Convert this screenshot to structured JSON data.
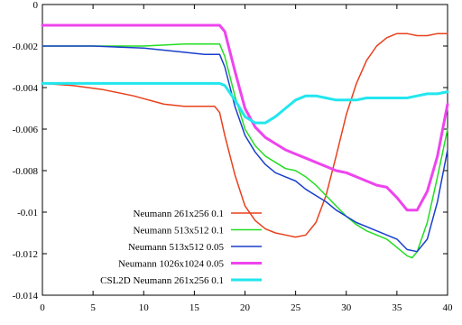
{
  "chart_data": {
    "type": "line",
    "title": "",
    "xlabel": "",
    "ylabel": "",
    "xlim": [
      0,
      40
    ],
    "ylim": [
      -0.014,
      0
    ],
    "xticks": [
      0,
      5,
      10,
      15,
      20,
      25,
      30,
      35,
      40
    ],
    "yticks": [
      0,
      -0.002,
      -0.004,
      -0.006,
      -0.008,
      -0.01,
      -0.012,
      -0.014
    ],
    "xtick_labels": [
      "0",
      "5",
      "10",
      "15",
      "20",
      "25",
      "30",
      "35",
      "40"
    ],
    "ytick_labels": [
      "0",
      "-0.002",
      "-0.004",
      "-0.006",
      "-0.008",
      "-0.01",
      "-0.012",
      "-0.014"
    ],
    "grid": false,
    "legend_position": "lower-left",
    "series": [
      {
        "name": "Neumann 261x256 0.1",
        "color": "#e8401c",
        "width": 1.5,
        "x": [
          0,
          3,
          6,
          9,
          12,
          14,
          16,
          17,
          17.5,
          18,
          19,
          20,
          21,
          22,
          23,
          24,
          25,
          26,
          27,
          28,
          29,
          30,
          31,
          32,
          33,
          34,
          35,
          36,
          37,
          38,
          39,
          40
        ],
        "y": [
          -0.0038,
          -0.0039,
          -0.0041,
          -0.0044,
          -0.0048,
          -0.0049,
          -0.0049,
          -0.0049,
          -0.0052,
          -0.0063,
          -0.0082,
          -0.0097,
          -0.0104,
          -0.0108,
          -0.011,
          -0.0111,
          -0.0112,
          -0.0111,
          -0.0105,
          -0.0092,
          -0.0073,
          -0.0053,
          -0.0038,
          -0.0027,
          -0.002,
          -0.0016,
          -0.0014,
          -0.0014,
          -0.0015,
          -0.0015,
          -0.0014,
          -0.0014
        ]
      },
      {
        "name": "Neumann 513x512 0.1",
        "color": "#22dd22",
        "width": 1.5,
        "x": [
          0,
          5,
          10,
          14,
          16,
          17.5,
          18,
          19,
          20,
          21,
          22,
          23,
          24,
          25,
          26,
          27,
          28,
          29,
          30,
          31,
          32,
          33,
          34,
          35,
          36,
          36.5,
          37,
          38,
          39,
          40
        ],
        "y": [
          -0.002,
          -0.002,
          -0.002,
          -0.0019,
          -0.0019,
          -0.0019,
          -0.0025,
          -0.0044,
          -0.006,
          -0.0068,
          -0.0073,
          -0.0076,
          -0.0079,
          -0.008,
          -0.0083,
          -0.0087,
          -0.0092,
          -0.0097,
          -0.0102,
          -0.0106,
          -0.0109,
          -0.0111,
          -0.0113,
          -0.0117,
          -0.0121,
          -0.0122,
          -0.0119,
          -0.0105,
          -0.0083,
          -0.006
        ]
      },
      {
        "name": "Neumann 513x512 0.05",
        "color": "#1a3fcc",
        "width": 1.5,
        "x": [
          0,
          5,
          10,
          14,
          16,
          17.5,
          18,
          19,
          20,
          21,
          22,
          23,
          24,
          25,
          26,
          27,
          28,
          29,
          30,
          31,
          32,
          33,
          34,
          35,
          36,
          37,
          38,
          39,
          40
        ],
        "y": [
          -0.002,
          -0.002,
          -0.0021,
          -0.0023,
          -0.0024,
          -0.0024,
          -0.003,
          -0.0049,
          -0.0063,
          -0.0071,
          -0.0077,
          -0.0081,
          -0.0083,
          -0.0085,
          -0.0089,
          -0.0092,
          -0.0095,
          -0.0099,
          -0.0102,
          -0.0105,
          -0.0107,
          -0.0109,
          -0.0111,
          -0.0113,
          -0.0118,
          -0.0119,
          -0.0113,
          -0.0095,
          -0.007
        ]
      },
      {
        "name": "Neumann 1026x1024 0.05",
        "color": "#ee44ee",
        "width": 3,
        "x": [
          0,
          5,
          10,
          15,
          17.5,
          18,
          19,
          20,
          21,
          22,
          23,
          24,
          25,
          26,
          27,
          28,
          29,
          30,
          31,
          32,
          33,
          34,
          35,
          36,
          37,
          38,
          39,
          40
        ],
        "y": [
          -0.001,
          -0.001,
          -0.001,
          -0.001,
          -0.001,
          -0.0013,
          -0.0032,
          -0.005,
          -0.0059,
          -0.0064,
          -0.0067,
          -0.007,
          -0.0072,
          -0.0074,
          -0.0076,
          -0.0078,
          -0.008,
          -0.0081,
          -0.0083,
          -0.0085,
          -0.0087,
          -0.0088,
          -0.0093,
          -0.0099,
          -0.0099,
          -0.009,
          -0.0073,
          -0.0048
        ]
      },
      {
        "name": "CSL2D Neumann 261x256 0.1",
        "color": "#22e6ee",
        "width": 3,
        "x": [
          0,
          5,
          10,
          15,
          17.5,
          18,
          19,
          20,
          21,
          22,
          23,
          24,
          25,
          26,
          27,
          28,
          29,
          30,
          31,
          32,
          33,
          34,
          35,
          36,
          37,
          38,
          39,
          40
        ],
        "y": [
          -0.0038,
          -0.0038,
          -0.0038,
          -0.0038,
          -0.0038,
          -0.0039,
          -0.0046,
          -0.0054,
          -0.0057,
          -0.0057,
          -0.0054,
          -0.005,
          -0.0046,
          -0.0044,
          -0.0044,
          -0.0045,
          -0.0046,
          -0.0046,
          -0.0046,
          -0.0045,
          -0.0045,
          -0.0045,
          -0.0045,
          -0.0045,
          -0.0044,
          -0.0043,
          -0.0043,
          -0.0042
        ]
      }
    ]
  }
}
